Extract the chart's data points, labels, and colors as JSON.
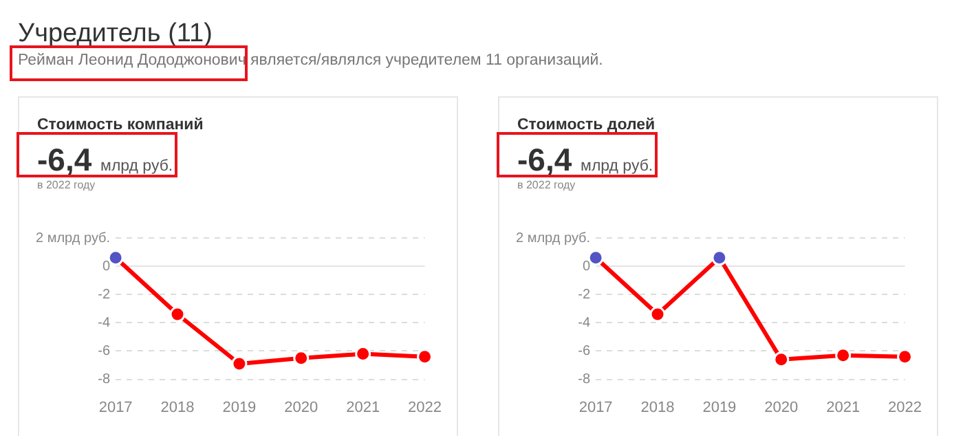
{
  "chart_data": [
    {
      "type": "other",
      "title": "Учредитель (11)",
      "subtitle": "Рейман Леонид Дододжонович является/являлся учредителем 11 организаций."
    },
    {
      "type": "line",
      "title": "Стоимость компаний",
      "annotations": [
        "-6,4",
        "млрд руб.",
        "в 2022 году"
      ],
      "categories": [
        "2017",
        "2018",
        "2019",
        "2020",
        "2021",
        "2022"
      ],
      "series": [
        {
          "color": "#ff0000",
          "colors": [
            "#5353c6",
            "#ff0000",
            "#ff0000",
            "#ff0000",
            "#ff0000",
            "#ff0000"
          ],
          "values": [
            0.6,
            -3.4,
            -6.9,
            -6.5,
            -6.2,
            -6.4
          ]
        }
      ],
      "ylim": [
        -8,
        2
      ],
      "yticks": [
        {
          "value": 2,
          "label": "2 млрд руб."
        },
        0,
        -2,
        -4,
        -6,
        -8
      ],
      "grid": "y",
      "legend": false,
      "marker": "circle"
    },
    {
      "type": "line",
      "title": "Стоимость долей",
      "annotations": [
        "-6,4",
        "млрд руб.",
        "в 2022 году"
      ],
      "categories": [
        "2017",
        "2018",
        "2019",
        "2020",
        "2021",
        "2022"
      ],
      "series": [
        {
          "color": "#ff0000",
          "colors": [
            "#5353c6",
            "#ff0000",
            "#5353c6",
            "#ff0000",
            "#ff0000",
            "#ff0000"
          ],
          "values": [
            0.6,
            -3.4,
            0.6,
            -6.6,
            -6.3,
            -6.4
          ]
        }
      ],
      "ylim": [
        -8,
        2
      ],
      "yticks": [
        {
          "value": 2,
          "label": "2 млрд руб."
        },
        0,
        -2,
        -4,
        -6,
        -8
      ],
      "grid": "y",
      "legend": false,
      "marker": "circle"
    }
  ]
}
